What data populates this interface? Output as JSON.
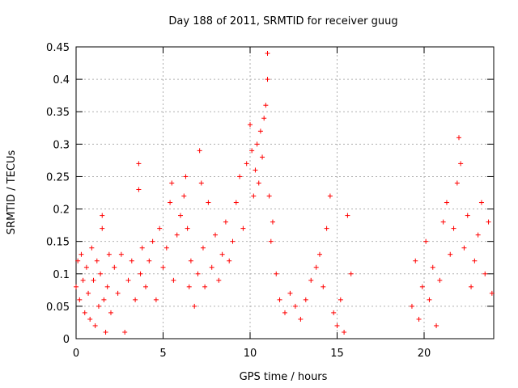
{
  "chart_data": {
    "type": "scatter",
    "title": "Day 188 of 2011, SRMTID for receiver guug",
    "xlabel": "GPS time / hours",
    "ylabel": "SRMTID / TECUs",
    "xlim": [
      0,
      24
    ],
    "ylim": [
      0,
      0.45
    ],
    "xticks": [
      0,
      5,
      10,
      15,
      20
    ],
    "xtick_labels": [
      "0",
      "5",
      "10",
      "15",
      "20"
    ],
    "yticks": [
      0,
      0.05,
      0.1,
      0.15,
      0.2,
      0.25,
      0.3,
      0.35,
      0.4,
      0.45
    ],
    "ytick_labels": [
      "0",
      "0.05",
      "0.1",
      "0.15",
      "0.2",
      "0.25",
      "0.3",
      "0.35",
      "0.4",
      "0.45"
    ],
    "grid": true,
    "marker": "+",
    "color": "#ff0000",
    "series": [
      {
        "name": "SRMTID",
        "points": [
          [
            0.0,
            0.08
          ],
          [
            0.1,
            0.12
          ],
          [
            0.2,
            0.06
          ],
          [
            0.3,
            0.13
          ],
          [
            0.4,
            0.09
          ],
          [
            0.5,
            0.04
          ],
          [
            0.6,
            0.11
          ],
          [
            0.7,
            0.07
          ],
          [
            0.8,
            0.03
          ],
          [
            0.9,
            0.14
          ],
          [
            1.0,
            0.09
          ],
          [
            1.1,
            0.02
          ],
          [
            1.2,
            0.12
          ],
          [
            1.3,
            0.05
          ],
          [
            1.4,
            0.1
          ],
          [
            1.5,
            0.19
          ],
          [
            1.5,
            0.17
          ],
          [
            1.6,
            0.06
          ],
          [
            1.7,
            0.01
          ],
          [
            1.8,
            0.08
          ],
          [
            1.9,
            0.13
          ],
          [
            2.0,
            0.04
          ],
          [
            2.2,
            0.11
          ],
          [
            2.4,
            0.07
          ],
          [
            2.6,
            0.13
          ],
          [
            2.8,
            0.01
          ],
          [
            3.0,
            0.09
          ],
          [
            3.2,
            0.12
          ],
          [
            3.4,
            0.06
          ],
          [
            3.6,
            0.27
          ],
          [
            3.6,
            0.23
          ],
          [
            3.7,
            0.1
          ],
          [
            3.8,
            0.14
          ],
          [
            4.0,
            0.08
          ],
          [
            4.2,
            0.12
          ],
          [
            4.4,
            0.15
          ],
          [
            4.6,
            0.06
          ],
          [
            4.8,
            0.17
          ],
          [
            5.0,
            0.11
          ],
          [
            5.2,
            0.14
          ],
          [
            5.4,
            0.21
          ],
          [
            5.5,
            0.24
          ],
          [
            5.6,
            0.09
          ],
          [
            5.8,
            0.16
          ],
          [
            6.0,
            0.19
          ],
          [
            6.2,
            0.22
          ],
          [
            6.3,
            0.25
          ],
          [
            6.4,
            0.17
          ],
          [
            6.5,
            0.08
          ],
          [
            6.6,
            0.12
          ],
          [
            6.8,
            0.05
          ],
          [
            7.0,
            0.1
          ],
          [
            7.1,
            0.29
          ],
          [
            7.2,
            0.24
          ],
          [
            7.3,
            0.14
          ],
          [
            7.4,
            0.08
          ],
          [
            7.6,
            0.21
          ],
          [
            7.8,
            0.11
          ],
          [
            8.0,
            0.16
          ],
          [
            8.2,
            0.09
          ],
          [
            8.4,
            0.13
          ],
          [
            8.6,
            0.18
          ],
          [
            8.8,
            0.12
          ],
          [
            9.0,
            0.15
          ],
          [
            9.2,
            0.21
          ],
          [
            9.4,
            0.25
          ],
          [
            9.6,
            0.17
          ],
          [
            9.8,
            0.27
          ],
          [
            10.0,
            0.33
          ],
          [
            10.1,
            0.29
          ],
          [
            10.2,
            0.22
          ],
          [
            10.3,
            0.26
          ],
          [
            10.4,
            0.3
          ],
          [
            10.5,
            0.24
          ],
          [
            10.6,
            0.32
          ],
          [
            10.7,
            0.28
          ],
          [
            10.8,
            0.34
          ],
          [
            10.9,
            0.36
          ],
          [
            11.0,
            0.44
          ],
          [
            11.0,
            0.4
          ],
          [
            11.1,
            0.22
          ],
          [
            11.2,
            0.15
          ],
          [
            11.3,
            0.18
          ],
          [
            11.5,
            0.1
          ],
          [
            11.7,
            0.06
          ],
          [
            12.0,
            0.04
          ],
          [
            12.3,
            0.07
          ],
          [
            12.6,
            0.05
          ],
          [
            12.9,
            0.03
          ],
          [
            13.2,
            0.06
          ],
          [
            13.5,
            0.09
          ],
          [
            13.8,
            0.11
          ],
          [
            14.0,
            0.13
          ],
          [
            14.2,
            0.08
          ],
          [
            14.4,
            0.17
          ],
          [
            14.6,
            0.22
          ],
          [
            14.8,
            0.04
          ],
          [
            15.0,
            0.02
          ],
          [
            15.2,
            0.06
          ],
          [
            15.4,
            0.01
          ],
          [
            15.6,
            0.19
          ],
          [
            15.8,
            0.1
          ],
          [
            19.3,
            0.05
          ],
          [
            19.5,
            0.12
          ],
          [
            19.7,
            0.03
          ],
          [
            19.9,
            0.08
          ],
          [
            20.1,
            0.15
          ],
          [
            20.3,
            0.06
          ],
          [
            20.5,
            0.11
          ],
          [
            20.7,
            0.02
          ],
          [
            20.9,
            0.09
          ],
          [
            21.1,
            0.18
          ],
          [
            21.3,
            0.21
          ],
          [
            21.5,
            0.13
          ],
          [
            21.7,
            0.17
          ],
          [
            21.9,
            0.24
          ],
          [
            22.0,
            0.31
          ],
          [
            22.1,
            0.27
          ],
          [
            22.3,
            0.14
          ],
          [
            22.5,
            0.19
          ],
          [
            22.7,
            0.08
          ],
          [
            22.9,
            0.12
          ],
          [
            23.1,
            0.16
          ],
          [
            23.3,
            0.21
          ],
          [
            23.5,
            0.1
          ],
          [
            23.7,
            0.18
          ],
          [
            23.9,
            0.07
          ]
        ]
      }
    ]
  }
}
